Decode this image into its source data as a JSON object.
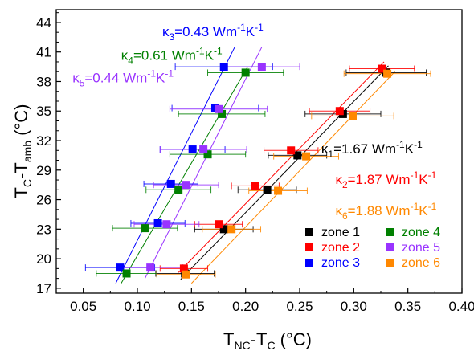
{
  "chart_data": {
    "type": "scatter",
    "xlabel": {
      "main": "T",
      "sub": "NC",
      "rest": "-T",
      "sub2": "C",
      "unit": " (°C)"
    },
    "ylabel": {
      "main": "T",
      "sub": "C",
      "rest": "-T",
      "sub2": "amb",
      "unit": " (°C)"
    },
    "xlim": [
      0.025,
      0.4
    ],
    "ylim": [
      16.5,
      45.3
    ],
    "x_ticks": [
      "0.05",
      "0.10",
      "0.15",
      "0.20",
      "0.25",
      "0.30",
      "0.35",
      "0.40"
    ],
    "x_tick_values": [
      0.05,
      0.1,
      0.15,
      0.2,
      0.25,
      0.3,
      0.35,
      0.4
    ],
    "y_ticks": [
      "17",
      "20",
      "23",
      "26",
      "29",
      "32",
      "35",
      "38",
      "41",
      "44"
    ],
    "y_tick_values": [
      17,
      20,
      23,
      26,
      29,
      32,
      35,
      38,
      41,
      44
    ],
    "grid": false,
    "legend_position": "bottom-right",
    "series": [
      {
        "name": "zone 1",
        "color": "#000000",
        "x": [
          0.144,
          0.18,
          0.22,
          0.248,
          0.29,
          0.33
        ],
        "y": [
          18.5,
          23.0,
          27.0,
          30.5,
          34.7,
          38.9
        ],
        "xerr": [
          0.027,
          0.027,
          0.027,
          0.027,
          0.035,
          0.037
        ],
        "fit": {
          "x": [
            0.14,
            0.332
          ],
          "y": [
            17.9,
            39.6
          ]
        }
      },
      {
        "name": "zone 2",
        "color": "#ff0000",
        "x": [
          0.143,
          0.175,
          0.209,
          0.242,
          0.287,
          0.326
        ],
        "y": [
          19.0,
          23.5,
          27.4,
          31.0,
          35.0,
          39.3
        ],
        "xerr": [
          0.022,
          0.022,
          0.022,
          0.025,
          0.028,
          0.03
        ],
        "fit": {
          "x": [
            0.138,
            0.328
          ],
          "y": [
            18.6,
            40.0
          ]
        }
      },
      {
        "name": "zone 3",
        "color": "#0000ff",
        "x": [
          0.084,
          0.119,
          0.131,
          0.151,
          0.172,
          0.18
        ],
        "y": [
          19.1,
          23.6,
          27.6,
          31.1,
          35.3,
          39.5
        ],
        "xerr": [
          0.032,
          0.025,
          0.025,
          0.03,
          0.04,
          0.045
        ],
        "fit": {
          "x": [
            0.08,
            0.19
          ],
          "y": [
            17.5,
            41.5
          ]
        }
      },
      {
        "name": "zone 4",
        "color": "#008000",
        "x": [
          0.09,
          0.107,
          0.138,
          0.165,
          0.178,
          0.2
        ],
        "y": [
          18.5,
          23.1,
          27.0,
          30.6,
          34.7,
          38.9
        ],
        "xerr": [
          0.028,
          0.03,
          0.03,
          0.035,
          0.04,
          0.035
        ],
        "fit": {
          "x": [
            0.085,
            0.202
          ],
          "y": [
            17.5,
            39.5
          ]
        }
      },
      {
        "name": "zone 5",
        "color": "#9933ff",
        "x": [
          0.112,
          0.127,
          0.145,
          0.161,
          0.175,
          0.215
        ],
        "y": [
          19.1,
          23.5,
          27.5,
          31.1,
          35.2,
          39.5
        ],
        "xerr": [
          0.03,
          0.03,
          0.03,
          0.04,
          0.045,
          0.035
        ],
        "fit": {
          "x": [
            0.107,
            0.215
          ],
          "y": [
            18.0,
            41.5
          ]
        }
      },
      {
        "name": "zone 6",
        "color": "#ff8800",
        "x": [
          0.145,
          0.187,
          0.23,
          0.256,
          0.299,
          0.331
        ],
        "y": [
          18.4,
          23.0,
          26.9,
          30.4,
          34.5,
          38.8
        ],
        "xerr": [
          0.027,
          0.027,
          0.027,
          0.03,
          0.038,
          0.04
        ],
        "fit": {
          "x": [
            0.15,
            0.338
          ],
          "y": [
            17.5,
            39.0
          ]
        }
      }
    ],
    "annotations": [
      {
        "id": "k3",
        "symbol": "κ",
        "sub": "3",
        "text": "=0.43 Wm",
        "sup1": "-1",
        "k": "K",
        "sup2": "-1",
        "color": "#0000ff",
        "ax": 0.123,
        "ay": 42.6
      },
      {
        "id": "k4",
        "symbol": "κ",
        "sub": "4",
        "text": "=0.61 Wm",
        "sup1": "-1",
        "k": "K",
        "sup2": "-1",
        "color": "#008000",
        "ax": 0.085,
        "ay": 40.2
      },
      {
        "id": "k5",
        "symbol": "κ",
        "sub": "5",
        "text": "=0.44 Wm",
        "sup1": "-1",
        "k": "K",
        "sup2": "-1",
        "color": "#9933ff",
        "ax": 0.04,
        "ay": 37.9
      },
      {
        "id": "k1",
        "symbol": "κ",
        "sub": "1",
        "text": "=1.67 Wm",
        "sup1": "-1",
        "k": "K",
        "sup2": "-1",
        "color": "#000000",
        "ax": 0.27,
        "ay": 30.7
      },
      {
        "id": "k2",
        "symbol": "κ",
        "sub": "2",
        "text": "=1.87 Wm",
        "sup1": "-1",
        "k": "K",
        "sup2": "-1",
        "color": "#ff0000",
        "ax": 0.283,
        "ay": 27.6
      },
      {
        "id": "k6",
        "symbol": "κ",
        "sub": "6",
        "text": "=1.88 Wm",
        "sup1": "-1",
        "k": "K",
        "sup2": "-1",
        "color": "#ff8800",
        "ax": 0.283,
        "ay": 24.4
      }
    ]
  }
}
